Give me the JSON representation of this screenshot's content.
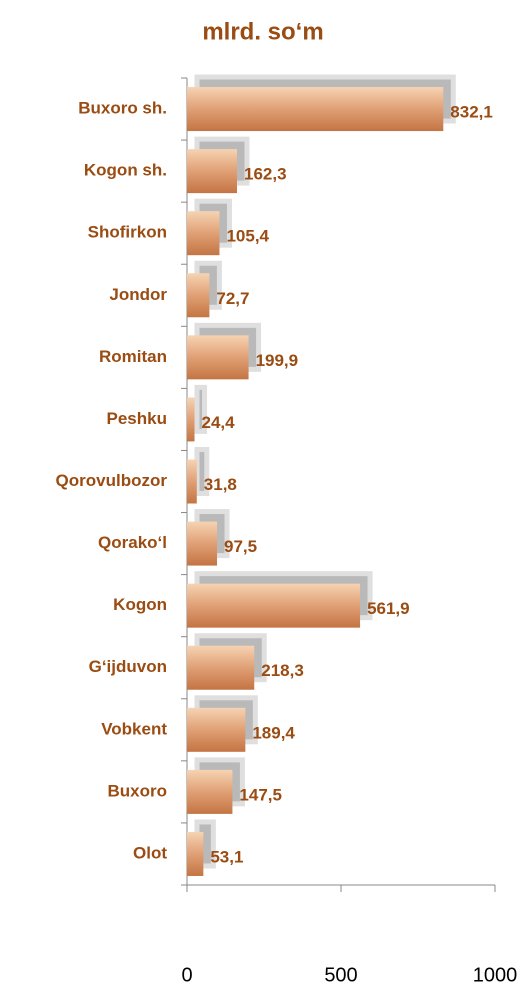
{
  "chart_data": {
    "type": "bar",
    "orientation": "horizontal",
    "title": "mlrd. so‘m",
    "categories": [
      "Buxoro sh.",
      "Kogon sh.",
      "Shofirkon",
      "Jondor",
      "Romitan",
      "Peshku",
      "Qorovulbozor",
      "Qorako‘l",
      "Kogon",
      "G‘ijduvon",
      "Vobkent",
      "Buxoro",
      "Olot"
    ],
    "values": [
      832.1,
      162.3,
      105.4,
      72.7,
      199.9,
      24.4,
      31.8,
      97.5,
      561.9,
      218.3,
      189.4,
      147.5,
      53.1
    ],
    "value_labels": [
      "832,1",
      "162,3",
      "105,4",
      "72,7",
      "199,9",
      "24,4",
      "31,8",
      "97,5",
      "561,9",
      "218,3",
      "189,4",
      "147,5",
      "53,1"
    ],
    "color": "#d9925f",
    "xlim": [
      0,
      1000
    ],
    "xticks": [
      0,
      500,
      1000
    ]
  }
}
